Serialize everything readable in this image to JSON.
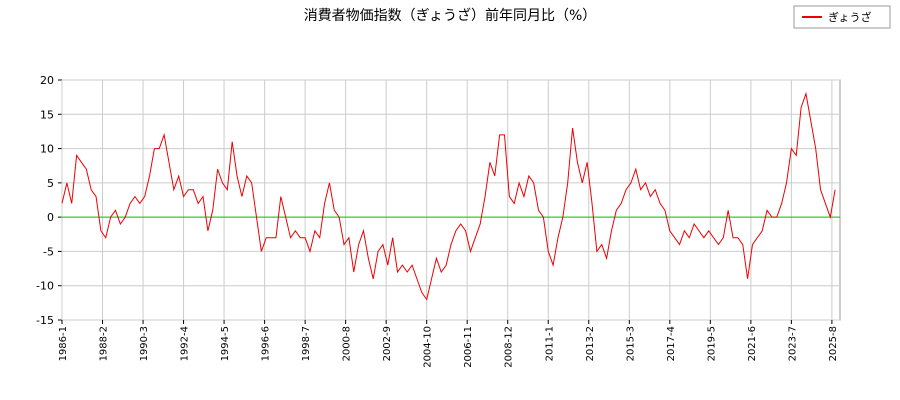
{
  "chart_data": {
    "type": "line",
    "title": "消費者物価指数（ぎょうざ）前年同月比（%）",
    "x": [
      1986,
      1986.25,
      1986.5,
      1986.75,
      1987,
      1987.25,
      1987.5,
      1987.75,
      1988,
      1988.25,
      1988.5,
      1988.75,
      1989,
      1989.25,
      1989.5,
      1989.75,
      1990,
      1990.25,
      1990.5,
      1990.75,
      1991,
      1991.25,
      1991.5,
      1991.75,
      1992,
      1992.25,
      1992.5,
      1992.75,
      1993,
      1993.25,
      1993.5,
      1993.75,
      1994,
      1994.25,
      1994.5,
      1994.75,
      1995,
      1995.25,
      1995.5,
      1995.75,
      1996,
      1996.25,
      1996.5,
      1996.75,
      1997,
      1997.25,
      1997.5,
      1997.75,
      1998,
      1998.25,
      1998.5,
      1998.75,
      1999,
      1999.25,
      1999.5,
      1999.75,
      2000,
      2000.25,
      2000.5,
      2000.75,
      2001,
      2001.25,
      2001.5,
      2001.75,
      2002,
      2002.25,
      2002.5,
      2002.75,
      2003,
      2003.25,
      2003.5,
      2003.75,
      2004,
      2004.25,
      2004.5,
      2004.75,
      2005,
      2005.25,
      2005.5,
      2005.75,
      2006,
      2006.25,
      2006.5,
      2006.75,
      2007,
      2007.25,
      2007.5,
      2007.75,
      2008,
      2008.25,
      2008.5,
      2008.75,
      2009,
      2009.25,
      2009.5,
      2009.75,
      2010,
      2010.25,
      2010.5,
      2010.75,
      2011,
      2011.25,
      2011.5,
      2011.75,
      2012,
      2012.25,
      2012.5,
      2012.75,
      2013,
      2013.25,
      2013.5,
      2013.75,
      2014,
      2014.25,
      2014.5,
      2014.75,
      2015,
      2015.25,
      2015.5,
      2015.75,
      2016,
      2016.25,
      2016.5,
      2016.75,
      2017,
      2017.25,
      2017.5,
      2017.75,
      2018,
      2018.25,
      2018.5,
      2018.75,
      2019,
      2019.25,
      2019.5,
      2019.75,
      2020,
      2020.25,
      2020.5,
      2020.75,
      2021,
      2021.25,
      2021.5,
      2021.75,
      2022,
      2022.25,
      2022.5,
      2022.75,
      2023,
      2023.25,
      2023.5,
      2023.75,
      2024,
      2024.25,
      2024.5,
      2024.75,
      2025,
      2025.25,
      2025.5,
      2025.75
    ],
    "series": [
      {
        "name": "ぎょうざ",
        "color": "#ee0000",
        "values": [
          2,
          5,
          2,
          9,
          8,
          7,
          4,
          3,
          -2,
          -3,
          0,
          1,
          -1,
          0,
          2,
          3,
          2,
          3,
          6,
          10,
          10,
          12,
          8,
          4,
          6,
          3,
          4,
          4,
          2,
          3,
          -2,
          1,
          7,
          5,
          4,
          11,
          6,
          3,
          6,
          5,
          0,
          -5,
          -3,
          -3,
          -3,
          3,
          0,
          -3,
          -2,
          -3,
          -3,
          -5,
          -2,
          -3,
          2,
          5,
          1,
          0,
          -4,
          -3,
          -8,
          -4,
          -2,
          -6,
          -9,
          -5,
          -4,
          -7,
          -3,
          -8,
          -7,
          -8,
          -7,
          -9,
          -11,
          -12,
          -9,
          -6,
          -8,
          -7,
          -4,
          -2,
          -1,
          -2,
          -5,
          -3,
          -1,
          3,
          8,
          6,
          12,
          12,
          3,
          2,
          5,
          3,
          6,
          5,
          1,
          0,
          -5,
          -7,
          -3,
          0,
          5,
          13,
          8,
          5,
          8,
          2,
          -5,
          -4,
          -6,
          -2,
          1,
          2,
          4,
          5,
          7,
          4,
          5,
          3,
          4,
          2,
          1,
          -2,
          -3,
          -4,
          -2,
          -3,
          -1,
          -2,
          -3,
          -2,
          -3,
          -4,
          -3,
          1,
          -3,
          -3,
          -4,
          -9,
          -4,
          -3,
          -2,
          1,
          0,
          0,
          2,
          5,
          10,
          9,
          16,
          18,
          14,
          10,
          4,
          2,
          0,
          4
        ]
      }
    ],
    "xlim": [
      1986,
      2026
    ],
    "xticks": [
      {
        "value": 1986,
        "label": "1986-1"
      },
      {
        "value": 1988.083,
        "label": "1988-2"
      },
      {
        "value": 1990.167,
        "label": "1990-3"
      },
      {
        "value": 1992.25,
        "label": "1992-4"
      },
      {
        "value": 1994.333,
        "label": "1994-5"
      },
      {
        "value": 1996.417,
        "label": "1996-6"
      },
      {
        "value": 1998.5,
        "label": "1998-7"
      },
      {
        "value": 2000.583,
        "label": "2000-8"
      },
      {
        "value": 2002.667,
        "label": "2002-9"
      },
      {
        "value": 2004.75,
        "label": "2004-10"
      },
      {
        "value": 2006.833,
        "label": "2006-11"
      },
      {
        "value": 2008.917,
        "label": "2008-12"
      },
      {
        "value": 2011,
        "label": "2011-1"
      },
      {
        "value": 2013.083,
        "label": "2013-2"
      },
      {
        "value": 2015.167,
        "label": "2015-3"
      },
      {
        "value": 2017.25,
        "label": "2017-4"
      },
      {
        "value": 2019.333,
        "label": "2019-5"
      },
      {
        "value": 2021.417,
        "label": "2021-6"
      },
      {
        "value": 2023.5,
        "label": "2023-7"
      },
      {
        "value": 2025.583,
        "label": "2025-8"
      }
    ],
    "ylim": [
      -15,
      20
    ],
    "yticks": [
      -15,
      -10,
      -5,
      0,
      5,
      10,
      15,
      20
    ],
    "grid": true,
    "hline": 0,
    "hline_color": "#00cc00",
    "legend": "top-right"
  }
}
